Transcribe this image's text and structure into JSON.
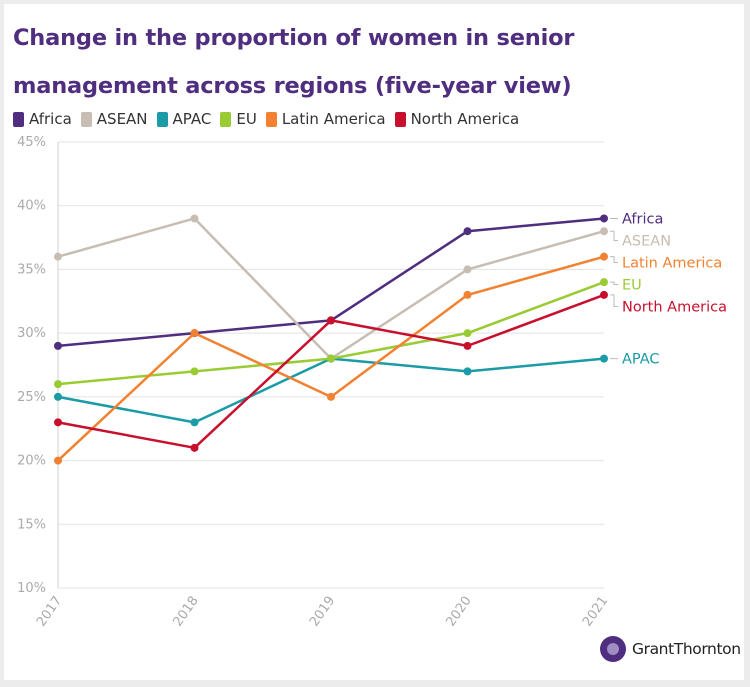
{
  "title": "Change in the proportion of women in senior management across regions (five-year view)",
  "brand": {
    "name": "GrantThornton",
    "icon": "grant-thornton-logo-icon",
    "color": "#4f2d7f"
  },
  "chart_data": {
    "type": "line",
    "title": "Change in the proportion of women in senior management across regions (five-year view)",
    "x": [
      "2017",
      "2018",
      "2019",
      "2020",
      "2021"
    ],
    "ylim": [
      10,
      45
    ],
    "yticks": [
      10,
      15,
      20,
      25,
      30,
      35,
      40,
      45
    ],
    "ytick_labels": [
      "10%",
      "15%",
      "20%",
      "25%",
      "30%",
      "35%",
      "40%",
      "45%"
    ],
    "grid": "horizontal",
    "legend_position": "top-left",
    "series": [
      {
        "name": "Africa",
        "color": "#4f2d7f",
        "values": [
          29,
          30,
          31,
          38,
          39
        ]
      },
      {
        "name": "ASEAN",
        "color": "#c7bdb2",
        "values": [
          36,
          39,
          28,
          35,
          38
        ]
      },
      {
        "name": "APAC",
        "color": "#1a9ba6",
        "values": [
          25,
          23,
          28,
          27,
          28
        ]
      },
      {
        "name": "EU",
        "color": "#99cc33",
        "values": [
          26,
          27,
          28,
          30,
          34
        ]
      },
      {
        "name": "Latin America",
        "color": "#f28130",
        "values": [
          20,
          30,
          25,
          33,
          36
        ]
      },
      {
        "name": "North America",
        "color": "#c8102e",
        "values": [
          23,
          21,
          31,
          29,
          33
        ]
      }
    ]
  }
}
